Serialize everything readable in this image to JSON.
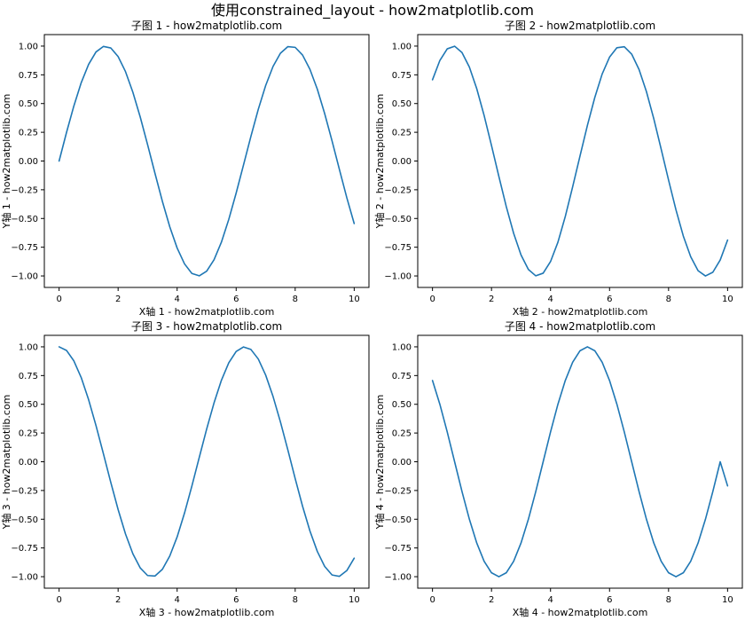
{
  "figure": {
    "suptitle": "使用constrained_layout - how2matplotlib.com"
  },
  "chart_data": [
    {
      "type": "line",
      "title": "子图 1 - how2matplotlib.com",
      "xlabel": "X轴 1 - how2matplotlib.com",
      "ylabel": "Y轴 1 - how2matplotlib.com",
      "xlim": [
        0,
        10
      ],
      "ylim": [
        -1.0,
        1.0
      ],
      "xticks": [
        0,
        2,
        4,
        6,
        8,
        10
      ],
      "yticks": [
        -1.0,
        -0.75,
        -0.5,
        -0.25,
        0.0,
        0.25,
        0.5,
        0.75,
        1.0
      ],
      "grid": false,
      "color": "#1f77b4",
      "series": [
        {
          "x": [
            0.0,
            0.25,
            0.5,
            0.75,
            1.0,
            1.25,
            1.5,
            1.75,
            2.0,
            2.25,
            2.5,
            2.75,
            3.0,
            3.25,
            3.5,
            3.75,
            4.0,
            4.25,
            4.5,
            4.75,
            5.0,
            5.25,
            5.5,
            5.75,
            6.0,
            6.25,
            6.5,
            6.75,
            7.0,
            7.25,
            7.5,
            7.75,
            8.0,
            8.25,
            8.5,
            8.75,
            9.0,
            9.25,
            9.5,
            9.75,
            10.0
          ],
          "y": [
            0.0,
            0.247,
            0.479,
            0.682,
            0.841,
            0.949,
            0.997,
            0.984,
            0.909,
            0.778,
            0.598,
            0.382,
            0.141,
            -0.108,
            -0.351,
            -0.572,
            -0.757,
            -0.895,
            -0.978,
            -0.999,
            -0.959,
            -0.859,
            -0.706,
            -0.508,
            -0.279,
            -0.033,
            0.215,
            0.45,
            0.657,
            0.823,
            0.938,
            0.995,
            0.989,
            0.922,
            0.798,
            0.625,
            0.412,
            0.174,
            -0.075,
            -0.32,
            -0.544
          ]
        }
      ]
    },
    {
      "type": "line",
      "title": "子图 2 - how2matplotlib.com",
      "xlabel": "X轴 2 - how2matplotlib.com",
      "ylabel": "Y轴 2 - how2matplotlib.com",
      "xlim": [
        0,
        10
      ],
      "ylim": [
        -1.0,
        1.0
      ],
      "xticks": [
        0,
        2,
        4,
        6,
        8,
        10
      ],
      "yticks": [
        -1.0,
        -0.75,
        -0.5,
        -0.25,
        0.0,
        0.25,
        0.5,
        0.75,
        1.0
      ],
      "grid": false,
      "color": "#1f77b4",
      "series": [
        {
          "x": [
            0.0,
            0.25,
            0.5,
            0.75,
            1.0,
            1.25,
            1.5,
            1.75,
            2.0,
            2.25,
            2.5,
            2.75,
            3.0,
            3.25,
            3.5,
            3.75,
            4.0,
            4.25,
            4.5,
            4.75,
            5.0,
            5.25,
            5.5,
            5.75,
            6.0,
            6.25,
            6.5,
            6.75,
            7.0,
            7.25,
            7.5,
            7.75,
            8.0,
            8.25,
            8.5,
            8.75,
            9.0,
            9.25,
            9.5,
            9.75,
            10.0
          ],
          "y": [
            0.707,
            0.875,
            0.976,
            0.999,
            0.944,
            0.817,
            0.629,
            0.396,
            0.135,
            -0.135,
            -0.396,
            -0.629,
            -0.817,
            -0.944,
            -0.999,
            -0.976,
            -0.875,
            -0.707,
            -0.483,
            -0.224,
            0.045,
            0.31,
            0.553,
            0.757,
            0.904,
            0.986,
            0.994,
            0.93,
            0.796,
            0.604,
            0.367,
            0.103,
            -0.166,
            -0.424,
            -0.653,
            -0.833,
            -0.954,
            -1.0,
            -0.968,
            -0.861,
            -0.688
          ]
        }
      ]
    },
    {
      "type": "line",
      "title": "子图 3 - how2matplotlib.com",
      "xlabel": "X轴 3 - how2matplotlib.com",
      "ylabel": "Y轴 3 - how2matplotlib.com",
      "xlim": [
        0,
        10
      ],
      "ylim": [
        -1.0,
        1.0
      ],
      "xticks": [
        0,
        2,
        4,
        6,
        8,
        10
      ],
      "yticks": [
        -1.0,
        -0.75,
        -0.5,
        -0.25,
        0.0,
        0.25,
        0.5,
        0.75,
        1.0
      ],
      "grid": false,
      "color": "#1f77b4",
      "series": [
        {
          "x": [
            0.0,
            0.25,
            0.5,
            0.75,
            1.0,
            1.25,
            1.5,
            1.75,
            2.0,
            2.25,
            2.5,
            2.75,
            3.0,
            3.25,
            3.5,
            3.75,
            4.0,
            4.25,
            4.5,
            4.75,
            5.0,
            5.25,
            5.5,
            5.75,
            6.0,
            6.25,
            6.5,
            6.75,
            7.0,
            7.25,
            7.5,
            7.75,
            8.0,
            8.25,
            8.5,
            8.75,
            9.0,
            9.25,
            9.5,
            9.75,
            10.0
          ],
          "y": [
            1.0,
            0.969,
            0.878,
            0.732,
            0.54,
            0.315,
            0.071,
            -0.178,
            -0.416,
            -0.628,
            -0.801,
            -0.924,
            -0.99,
            -0.994,
            -0.936,
            -0.82,
            -0.654,
            -0.446,
            -0.211,
            0.038,
            0.284,
            0.512,
            0.709,
            0.861,
            0.96,
            0.999,
            0.977,
            0.894,
            0.754,
            0.568,
            0.347,
            0.105,
            -0.146,
            -0.387,
            -0.602,
            -0.78,
            -0.911,
            -0.985,
            -0.997,
            -0.947,
            -0.839
          ]
        }
      ]
    },
    {
      "type": "line",
      "title": "子图 4 - how2matplotlib.com",
      "xlabel": "X轴 4 - how2matplotlib.com",
      "ylabel": "Y轴 4 - how2matplotlib.com",
      "xlim": [
        0,
        10
      ],
      "ylim": [
        -1.0,
        1.0
      ],
      "xticks": [
        0,
        2,
        4,
        6,
        8,
        10
      ],
      "yticks": [
        -1.0,
        -0.75,
        -0.5,
        -0.25,
        0.0,
        0.25,
        0.5,
        0.75,
        1.0
      ],
      "grid": false,
      "color": "#1f77b4",
      "series": [
        {
          "x": [
            0.0,
            0.25,
            0.5,
            0.75,
            1.0,
            1.25,
            1.5,
            1.75,
            2.0,
            2.25,
            2.5,
            2.75,
            3.0,
            3.25,
            3.5,
            3.75,
            4.0,
            4.25,
            4.5,
            4.75,
            5.0,
            5.25,
            5.5,
            5.75,
            6.0,
            6.25,
            6.5,
            6.75,
            7.0,
            7.25,
            7.5,
            7.75,
            8.0,
            8.25,
            8.5,
            8.75,
            9.0,
            9.25,
            9.5,
            9.75,
            10.0
          ],
          "y": [
            0.707,
            0.5,
            0.259,
            0.0,
            -0.259,
            -0.5,
            -0.707,
            -0.866,
            -0.966,
            -1.0,
            -0.966,
            -0.866,
            -0.707,
            -0.5,
            -0.259,
            0.0,
            0.259,
            0.5,
            0.707,
            0.866,
            0.966,
            1.0,
            0.966,
            0.866,
            0.707,
            0.5,
            0.259,
            0.0,
            -0.259,
            -0.5,
            -0.707,
            -0.866,
            -0.966,
            -1.0,
            -0.966,
            -0.866,
            -0.707,
            -0.5,
            -0.259,
            0.0,
            -0.21
          ]
        }
      ]
    }
  ]
}
